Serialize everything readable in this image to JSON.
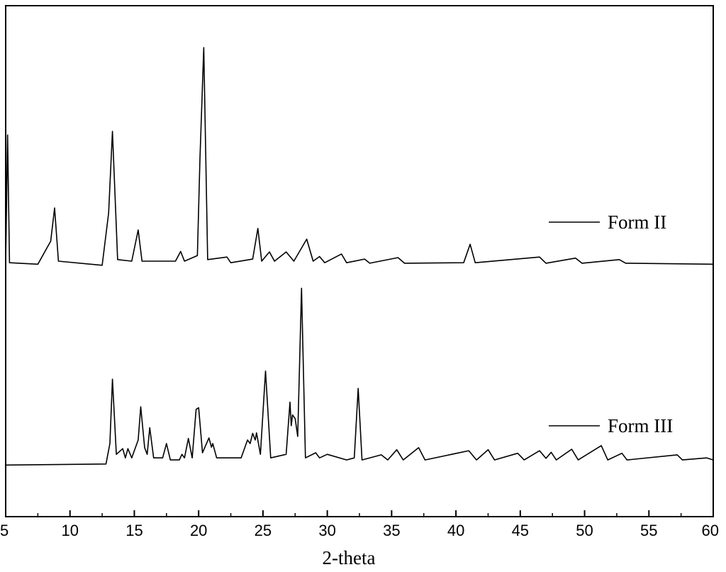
{
  "chart_data": {
    "type": "line",
    "x_label": "2-theta",
    "xlim": [
      5,
      60
    ],
    "xticks": [
      5,
      10,
      15,
      20,
      25,
      30,
      35,
      40,
      45,
      50,
      55,
      60
    ],
    "ylim": [
      0,
      100
    ],
    "grid": false,
    "legend_position": "right",
    "series": [
      {
        "name": "Form II",
        "color": "#000000",
        "x": [
          5.0,
          5.15,
          5.3,
          7.5,
          8.5,
          8.8,
          9.1,
          12.5,
          13.0,
          13.3,
          13.7,
          14.8,
          15.3,
          15.6,
          18.2,
          18.6,
          18.9,
          19.9,
          20.1,
          20.4,
          20.7,
          22.2,
          22.5,
          24.2,
          24.6,
          24.9,
          25.5,
          25.9,
          26.8,
          27.4,
          28.4,
          28.9,
          29.4,
          29.8,
          31.1,
          31.5,
          32.9,
          33.3,
          35.5,
          36.0,
          40.6,
          41.1,
          41.5,
          46.5,
          47.0,
          49.3,
          49.8,
          52.7,
          53.2,
          60.0
        ],
        "values": [
          49.7,
          74.7,
          49.7,
          49.4,
          53.9,
          60.4,
          50.0,
          49.2,
          59.4,
          75.4,
          50.3,
          50.0,
          56.1,
          50.0,
          50.0,
          51.9,
          50.0,
          51.1,
          69.9,
          91.8,
          50.3,
          50.8,
          49.7,
          50.4,
          56.4,
          50.0,
          51.8,
          50.0,
          51.8,
          50.0,
          54.3,
          50.0,
          50.9,
          49.7,
          51.4,
          49.7,
          50.4,
          49.6,
          50.7,
          49.6,
          49.7,
          53.3,
          49.7,
          50.8,
          49.6,
          50.6,
          49.6,
          50.3,
          49.6,
          49.4
        ]
      },
      {
        "name": "Form III",
        "color": "#000000",
        "x": [
          5.0,
          12.8,
          13.1,
          13.3,
          13.6,
          14.1,
          14.3,
          14.5,
          14.8,
          15.3,
          15.5,
          15.8,
          16.0,
          16.2,
          16.5,
          17.2,
          17.5,
          17.8,
          18.5,
          18.7,
          18.9,
          19.2,
          19.5,
          19.8,
          20.0,
          20.3,
          20.8,
          21.0,
          21.1,
          21.4,
          23.3,
          23.8,
          24.0,
          24.2,
          24.4,
          24.5,
          24.8,
          25.2,
          25.6,
          26.8,
          27.1,
          27.2,
          27.3,
          27.5,
          27.7,
          28.0,
          28.3,
          29.1,
          29.4,
          30.0,
          31.5,
          32.1,
          32.4,
          32.7,
          34.2,
          34.7,
          35.4,
          35.9,
          37.1,
          37.6,
          41.0,
          41.6,
          42.5,
          43.0,
          44.8,
          45.3,
          46.5,
          47.0,
          47.4,
          47.8,
          49.0,
          49.5,
          51.3,
          51.8,
          52.9,
          53.3,
          57.2,
          57.6,
          59.5,
          60.0
        ],
        "values": [
          10.1,
          10.3,
          14.3,
          26.9,
          12.2,
          13.3,
          11.5,
          13.3,
          11.5,
          15.0,
          21.5,
          13.5,
          12.2,
          17.4,
          11.5,
          11.5,
          14.3,
          11.1,
          11.1,
          12.2,
          11.5,
          15.3,
          11.5,
          21.0,
          21.3,
          12.5,
          15.4,
          13.6,
          14.3,
          11.5,
          11.5,
          15.0,
          14.3,
          16.3,
          15.0,
          16.4,
          12.2,
          28.5,
          11.5,
          12.2,
          22.4,
          17.8,
          19.9,
          19.2,
          15.7,
          44.7,
          11.5,
          12.5,
          11.5,
          12.2,
          11.1,
          11.5,
          25.1,
          11.1,
          12.1,
          11.1,
          13.1,
          11.1,
          13.5,
          11.1,
          12.9,
          11.1,
          13.1,
          11.1,
          12.4,
          11.1,
          12.9,
          11.4,
          12.6,
          11.1,
          13.2,
          11.1,
          13.9,
          11.1,
          12.4,
          11.1,
          12.1,
          11.1,
          11.5,
          11.1
        ]
      }
    ]
  }
}
